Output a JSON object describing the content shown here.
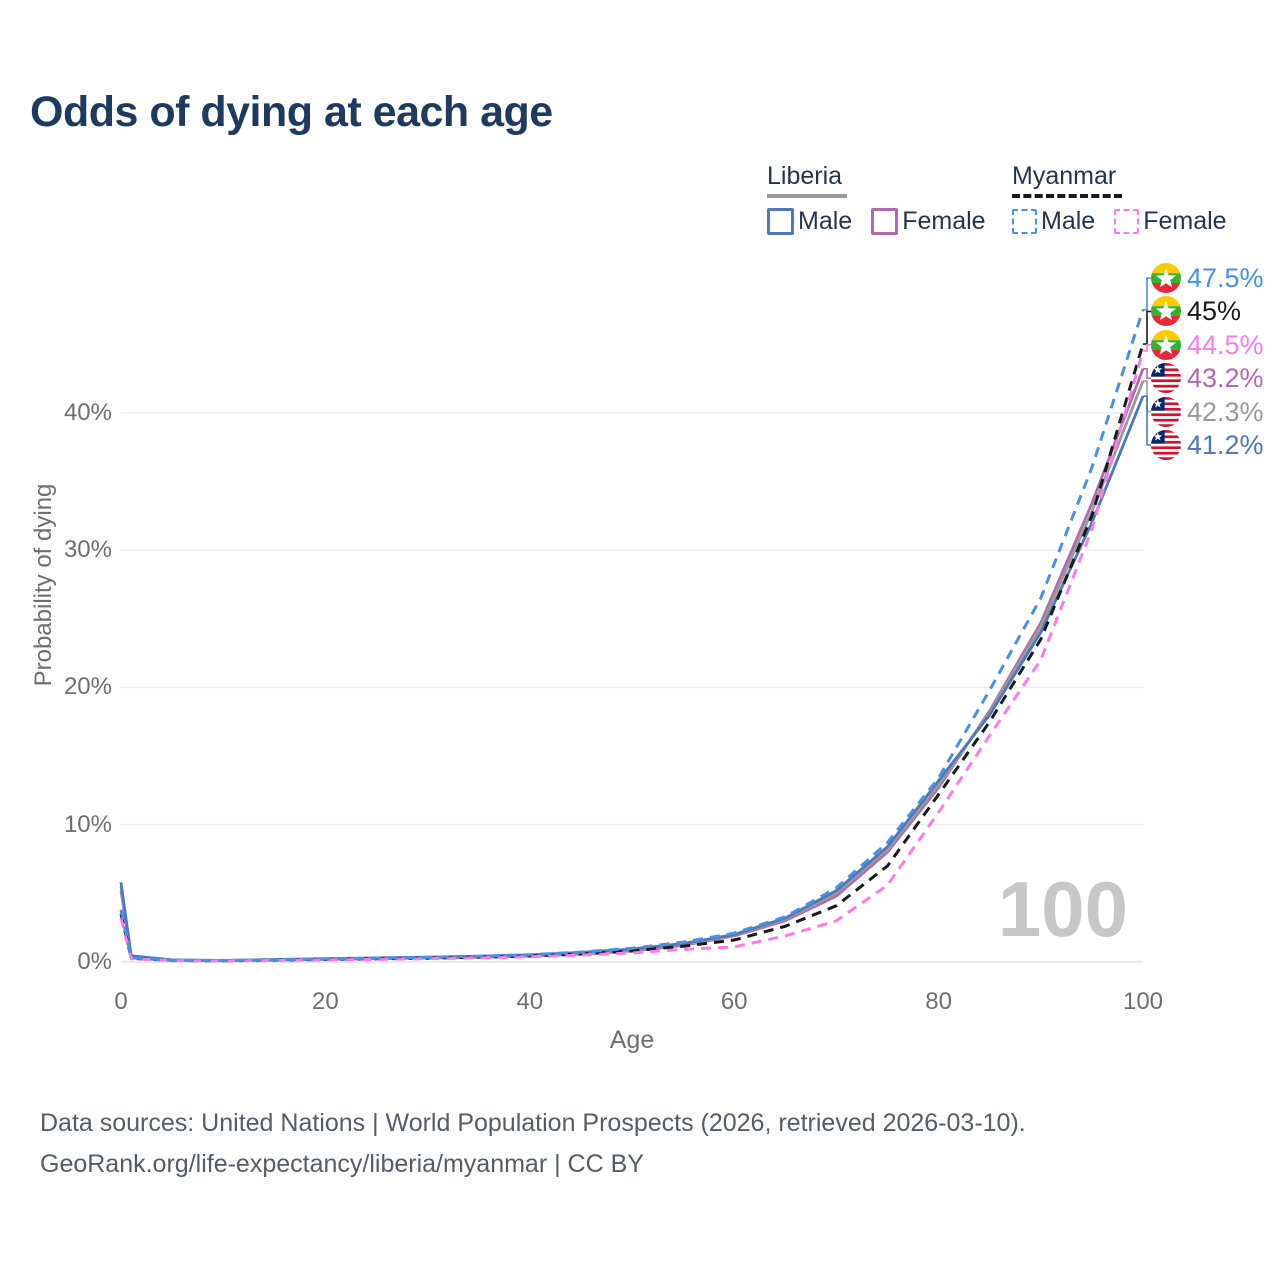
{
  "title": "Odds of dying at each age",
  "colors": {
    "title": "#1e3a5f",
    "legend_text": "#26354f",
    "axis_text": "#6f6f6f",
    "grid": "#ededed",
    "grid_zero": "#e2e2e2",
    "watermark": "#c7c7c7",
    "liberia_male": "#4e79b5",
    "liberia_female": "#ae6bae",
    "liberia_both": "#9a9a9a",
    "myanmar_male": "#4a90e8",
    "myanmar_female": "#fb7ce6",
    "myanmar_both": "#1a1a1a",
    "liberia_rule": "#9a9a9a",
    "myanmar_rule": "#1a1a1a",
    "footer_text": "#565d66"
  },
  "legend": {
    "groups": [
      {
        "label": "Liberia",
        "line_style": "solid",
        "items": [
          {
            "label": "Male",
            "color": "#4e79b5"
          },
          {
            "label": "Female",
            "color": "#ae6bae"
          }
        ]
      },
      {
        "label": "Myanmar",
        "line_style": "dashed",
        "items": [
          {
            "label": "Male",
            "color": "#4a90e8"
          },
          {
            "label": "Female",
            "color": "#fb7ce6"
          }
        ]
      }
    ]
  },
  "chart_data": {
    "type": "line",
    "title": "Odds of dying at each age",
    "xlabel": "Age",
    "ylabel": "Probability of dying",
    "xlim": [
      0,
      100
    ],
    "ylim": [
      0,
      47.5
    ],
    "grid": true,
    "x_ticks": [
      0,
      20,
      40,
      60,
      80,
      100
    ],
    "y_ticks": [
      0,
      10,
      20,
      30,
      40
    ],
    "y_tick_suffix": "%",
    "watermark": "100",
    "x": [
      0,
      1,
      5,
      10,
      15,
      20,
      25,
      30,
      35,
      40,
      45,
      50,
      55,
      60,
      65,
      70,
      75,
      80,
      85,
      90,
      95,
      100
    ],
    "series": [
      {
        "id": "liberia_female",
        "name": "Liberia Female",
        "country": "Liberia",
        "sex": "Female",
        "dash": false,
        "color": "#ae6bae",
        "values": [
          5.2,
          0.4,
          0.13,
          0.1,
          0.14,
          0.19,
          0.24,
          0.29,
          0.35,
          0.43,
          0.57,
          0.8,
          1.2,
          1.9,
          3.0,
          4.8,
          8.0,
          12.7,
          18.3,
          24.7,
          33.4,
          43.2
        ]
      },
      {
        "id": "liberia_both",
        "name": "Liberia (both sexes)",
        "country": "Liberia",
        "sex": "Both",
        "dash": false,
        "color": "#9a9a9a",
        "values": [
          5.5,
          0.42,
          0.14,
          0.11,
          0.16,
          0.22,
          0.27,
          0.32,
          0.38,
          0.47,
          0.62,
          0.88,
          1.28,
          1.95,
          3.1,
          5.0,
          8.2,
          12.9,
          18.2,
          24.4,
          32.8,
          42.3
        ]
      },
      {
        "id": "liberia_male",
        "name": "Liberia Male",
        "country": "Liberia",
        "sex": "Male",
        "dash": false,
        "color": "#4e79b5",
        "values": [
          5.8,
          0.45,
          0.15,
          0.12,
          0.18,
          0.25,
          0.3,
          0.36,
          0.43,
          0.52,
          0.7,
          0.95,
          1.35,
          2.0,
          3.2,
          5.2,
          8.4,
          13.2,
          18.0,
          24.0,
          32.0,
          41.2
        ]
      },
      {
        "id": "myanmar_both",
        "name": "Myanmar (both sexes)",
        "country": "Myanmar",
        "sex": "Both",
        "dash": true,
        "color": "#1a1a1a",
        "values": [
          3.5,
          0.27,
          0.11,
          0.09,
          0.13,
          0.18,
          0.23,
          0.28,
          0.35,
          0.44,
          0.58,
          0.8,
          1.15,
          1.6,
          2.6,
          4.1,
          7.0,
          12.2,
          17.5,
          23.5,
          32.5,
          45.0
        ]
      },
      {
        "id": "myanmar_female",
        "name": "Myanmar Female",
        "country": "Myanmar",
        "sex": "Female",
        "dash": true,
        "color": "#fb7ce6",
        "values": [
          3.2,
          0.24,
          0.1,
          0.08,
          0.11,
          0.15,
          0.19,
          0.24,
          0.3,
          0.38,
          0.5,
          0.66,
          0.92,
          1.1,
          1.9,
          3.0,
          5.6,
          10.9,
          16.5,
          22.0,
          31.5,
          44.5
        ]
      },
      {
        "id": "myanmar_male",
        "name": "Myanmar Male",
        "country": "Myanmar",
        "sex": "Male",
        "dash": true,
        "color": "#4a90e8",
        "values": [
          3.8,
          0.3,
          0.12,
          0.1,
          0.15,
          0.22,
          0.28,
          0.34,
          0.42,
          0.53,
          0.72,
          1.0,
          1.45,
          2.1,
          3.3,
          5.4,
          8.7,
          13.4,
          19.8,
          26.5,
          36.0,
          47.5
        ]
      }
    ],
    "end_labels": [
      {
        "value": "47.5%",
        "flag": "myanmar",
        "series_id": "myanmar_male",
        "color": "#4a90e8"
      },
      {
        "value": "45%",
        "flag": "myanmar",
        "series_id": "myanmar_both",
        "color": "#1a1a1a"
      },
      {
        "value": "44.5%",
        "flag": "myanmar",
        "series_id": "myanmar_female",
        "color": "#fb7ce6"
      },
      {
        "value": "43.2%",
        "flag": "liberia",
        "series_id": "liberia_female",
        "color": "#ae6bae"
      },
      {
        "value": "42.3%",
        "flag": "liberia",
        "series_id": "liberia_both",
        "color": "#9a9a9a"
      },
      {
        "value": "41.2%",
        "flag": "liberia",
        "series_id": "liberia_male",
        "color": "#4e79b5"
      }
    ]
  },
  "footer": {
    "line1": "Data sources: United Nations | World Population Prospects (2026, retrieved 2026-03-10).",
    "line2": "GeoRank.org/life-expectancy/liberia/myanmar | CC BY"
  }
}
